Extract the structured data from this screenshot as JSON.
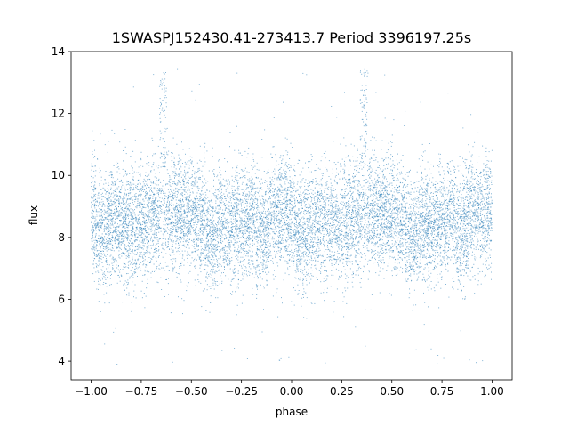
{
  "chart_data": {
    "type": "scatter",
    "title": "1SWASPJ152430.41-273413.7 Period 3396197.25s",
    "xlabel": "phase",
    "ylabel": "flux",
    "xlim": [
      -1.1,
      1.1
    ],
    "ylim": [
      3.4,
      14.0
    ],
    "x_ticks": [
      -1.0,
      -0.75,
      -0.5,
      -0.25,
      0.0,
      0.25,
      0.5,
      0.75,
      1.0
    ],
    "x_tick_labels": [
      "−1.00",
      "−0.75",
      "−0.50",
      "−0.25",
      "0.00",
      "0.25",
      "0.50",
      "0.75",
      "1.00"
    ],
    "y_ticks": [
      4,
      6,
      8,
      10,
      12,
      14
    ],
    "y_tick_labels": [
      "4",
      "6",
      "8",
      "10",
      "12",
      "14"
    ],
    "grid": false,
    "legend": "none",
    "point_color": "#1f77b4",
    "series": [
      {
        "phase_range": [
          -1.0,
          1.0
        ],
        "median_flux": 8.6,
        "typical_flux_range": [
          6.5,
          10.8
        ],
        "extreme_flux_range": [
          3.9,
          13.5
        ],
        "approx_points": 12000,
        "note_values": {
          "bright_excursion_phases": [
            -0.64,
            0.36
          ],
          "local_dip_phases": [
            -0.15,
            0.05,
            0.6
          ]
        }
      }
    ]
  }
}
